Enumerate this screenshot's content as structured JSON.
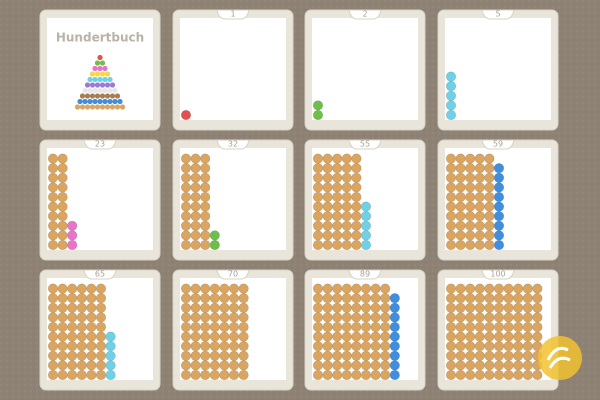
{
  "title": "Hundertbuch",
  "cards": [
    {
      "number": 1
    },
    {
      "number": 2
    },
    {
      "number": 5
    },
    {
      "number": 23
    },
    {
      "number": 32
    },
    {
      "number": 55
    },
    {
      "number": 59
    },
    {
      "number": 65
    },
    {
      "number": 70
    },
    {
      "number": 89
    },
    {
      "number": 100
    }
  ],
  "ten_color": "#d9a560",
  "bead_colors": {
    "1": "#e0524f",
    "2": "#6cc04a",
    "3": "#e873c8",
    "4": "#f3d94a",
    "5": "#6fd0e6",
    "6": "#9b7ad8",
    "7": "#e8e8e8",
    "8": "#a67c52",
    "9": "#3f8fde"
  }
}
